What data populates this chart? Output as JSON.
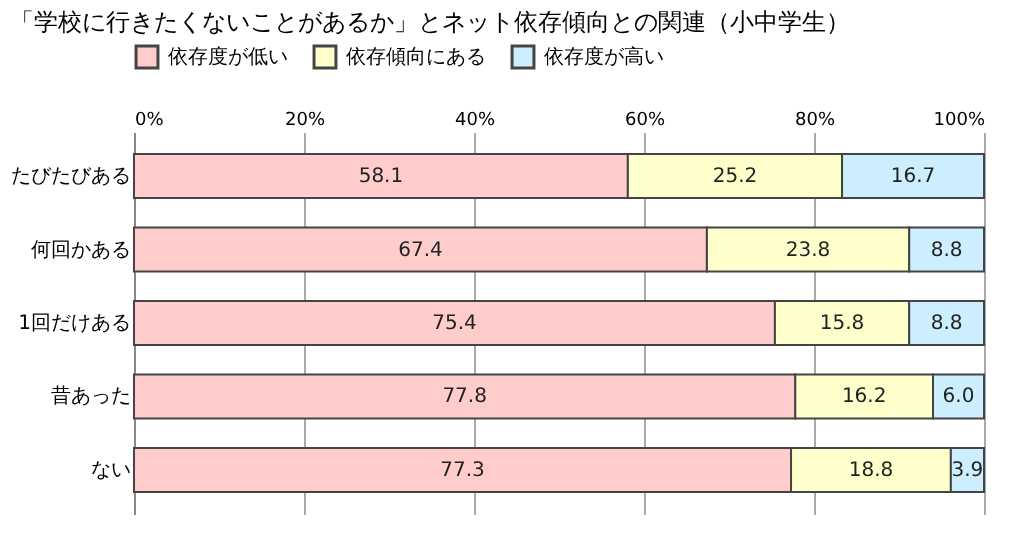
{
  "chart_data": {
    "type": "bar",
    "orientation": "horizontal",
    "stacked": true,
    "title": "「学校に行きたくないことがあるか」とネット依存傾向との関連（小中学生）",
    "categories": [
      "たびたびある",
      "何回かある",
      "1回だけある",
      "昔あった",
      "ない"
    ],
    "series": [
      {
        "name": "依存度が低い",
        "color": "#ffcccc",
        "values": [
          58.1,
          67.4,
          75.4,
          77.8,
          77.3
        ],
        "value_labels": [
          "58.1",
          "67.4",
          "75.4",
          "77.8",
          "77.3"
        ]
      },
      {
        "name": "依存傾向にある",
        "color": "#ffffcc",
        "values": [
          25.2,
          23.8,
          15.8,
          16.2,
          18.8
        ],
        "value_labels": [
          "25.2",
          "23.8",
          "15.8",
          "16.2",
          "18.8"
        ]
      },
      {
        "name": "依存度が高い",
        "color": "#cceeff",
        "values": [
          16.7,
          8.8,
          8.8,
          6.0,
          3.9
        ],
        "value_labels": [
          "16.7",
          "8.8",
          "8.8",
          "6.0",
          "3.9"
        ]
      }
    ],
    "xlim": [
      0,
      100
    ],
    "xticks": [
      {
        "value": 0,
        "label": "0%"
      },
      {
        "value": 20,
        "label": "20%"
      },
      {
        "value": 40,
        "label": "40%"
      },
      {
        "value": 60,
        "label": "60%"
      },
      {
        "value": 80,
        "label": "80%"
      },
      {
        "value": 100,
        "label": "100%"
      }
    ],
    "grid": "x",
    "legend": "top"
  }
}
